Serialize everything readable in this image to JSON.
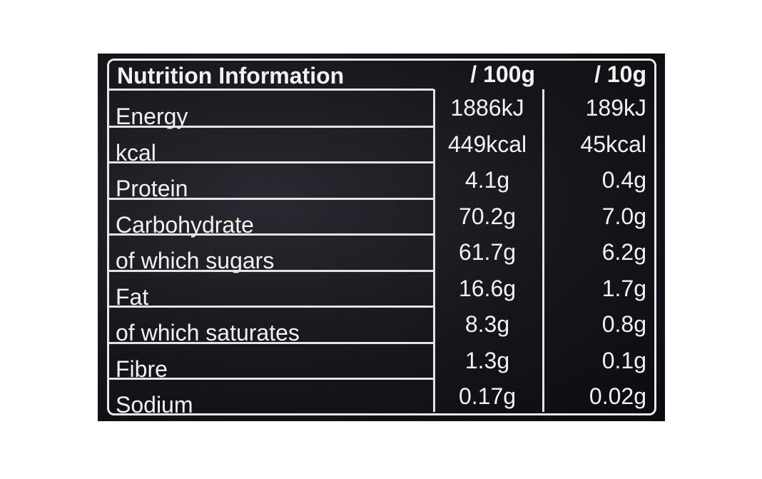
{
  "table": {
    "title": "Nutrition Information",
    "columns": [
      "/ 100g",
      "/ 10g"
    ],
    "rows": [
      [
        "Energy",
        "1886kJ",
        "189kJ"
      ],
      [
        "kcal",
        "449kcal",
        "45kcal"
      ],
      [
        "Protein",
        "4.1g",
        "0.4g"
      ],
      [
        "Carbohydrate",
        "70.2g",
        "7.0g"
      ],
      [
        "of which sugars",
        "61.7g",
        "6.2g"
      ],
      [
        "Fat",
        "16.6g",
        "1.7g"
      ],
      [
        "of which saturates",
        "8.3g",
        "0.8g"
      ],
      [
        "Fibre",
        "1.3g",
        "0.1g"
      ],
      [
        "Sodium",
        "0.17g",
        "0.02g"
      ]
    ]
  }
}
